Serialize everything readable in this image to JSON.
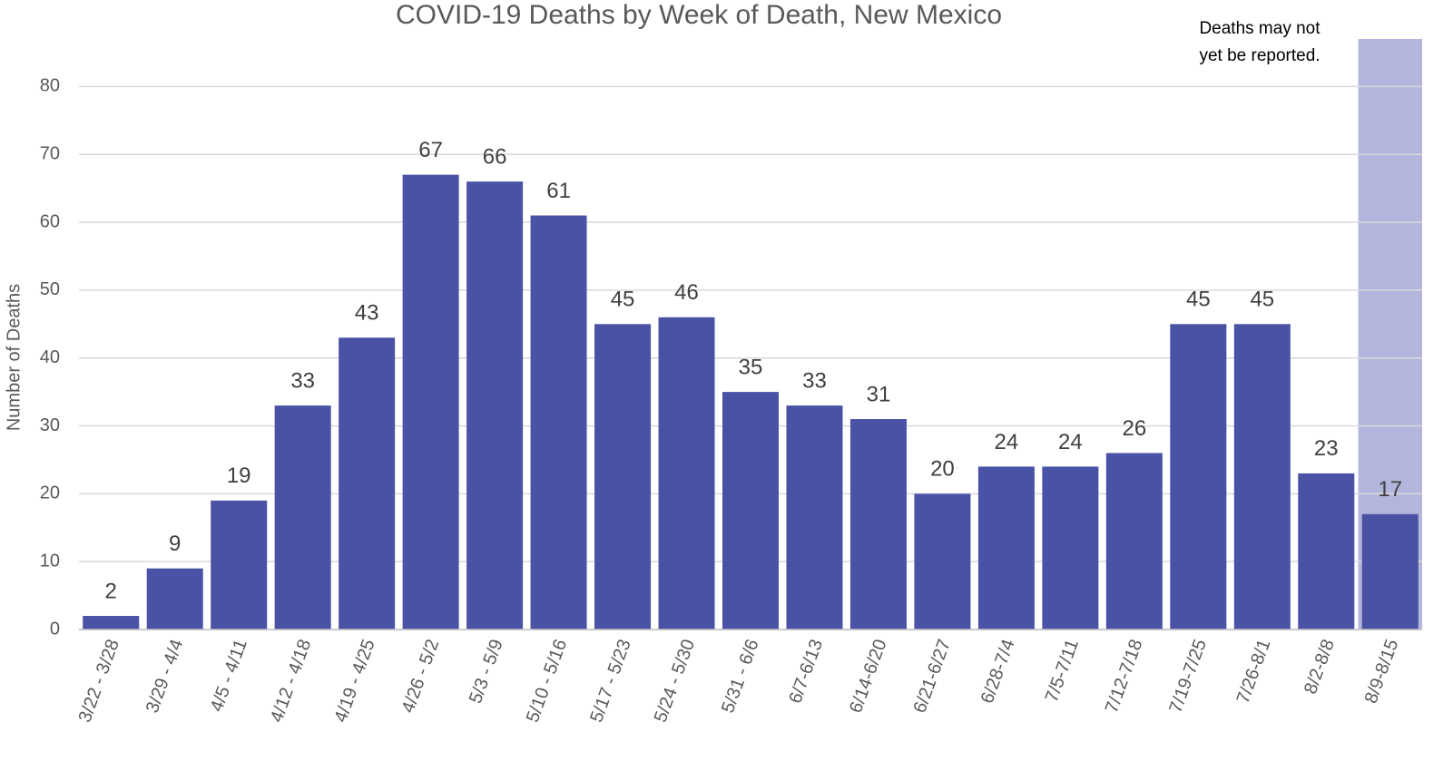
{
  "chart_data": {
    "type": "bar",
    "title": "COVID-19 Deaths by Week of Death, New Mexico",
    "y_label": "Number of Deaths",
    "categories": [
      "3/22 - 3/28",
      "3/29 - 4/4",
      "4/5 - 4/11",
      "4/12 - 4/18",
      "4/19 - 4/25",
      "4/26 - 5/2",
      "5/3 - 5/9",
      "5/10 - 5/16",
      "5/17 - 5/23",
      "5/24 - 5/30",
      "5/31 - 6/6",
      "6/7-6/13",
      "6/14-6/20",
      "6/21-6/27",
      "6/28-7/4",
      "7/5-7/11",
      "7/12-7/18",
      "7/19-7/25",
      "7/26-8/1",
      "8/2-8/8",
      "8/9-8/15"
    ],
    "values": [
      2,
      9,
      19,
      33,
      43,
      67,
      66,
      61,
      45,
      46,
      35,
      33,
      31,
      20,
      24,
      24,
      26,
      45,
      45,
      23,
      17
    ],
    "color": "#4a52a5",
    "ylim": [
      0,
      87
    ],
    "yticks": [
      0,
      10,
      20,
      30,
      40,
      50,
      60,
      70,
      80
    ],
    "grid": true,
    "annotation": {
      "lines": [
        "Deaths may not",
        "yet be reported."
      ],
      "shade_color": "#b3b6dc"
    }
  }
}
